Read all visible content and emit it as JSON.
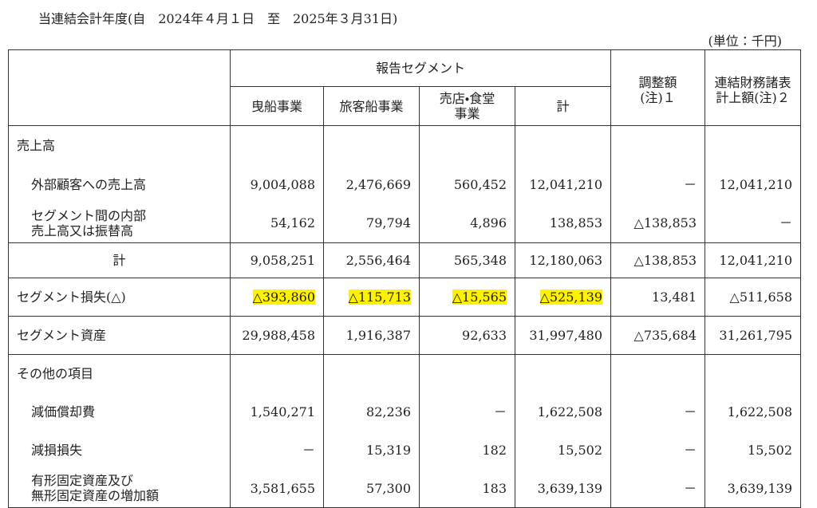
{
  "title": "当連結会計年度(自　2024年４月１日　至　2025年３月31日)",
  "unit": "(単位：千円)",
  "header": {
    "group": "報告セグメント",
    "columns": [
      "曳船事業",
      "旅客船事業",
      "売店・食堂\n事業",
      "計"
    ],
    "adjustment": "調整額\n(注)１",
    "consolidated": "連結財務諸表\n計上額(注)２"
  },
  "body": {
    "sections": [
      {
        "rows": [
          {
            "label": "売上高"
          },
          {
            "label": "外部顧客への売上高",
            "cells": [
              "9,004,088",
              "2,476,669",
              "560,452",
              "12,041,210",
              "－",
              "12,041,210"
            ]
          },
          {
            "label": "セグメント間の内部\n売上高又は振替高",
            "cells": [
              "54,162",
              "79,794",
              "4,896",
              "138,853",
              "△138,853",
              "－"
            ]
          }
        ]
      },
      {
        "rows": [
          {
            "label": "計",
            "cells": [
              "9,058,251",
              "2,556,464",
              "565,348",
              "12,180,063",
              "△138,853",
              "12,041,210"
            ]
          }
        ]
      },
      {
        "rows": [
          {
            "label": "セグメント損失(△)",
            "cells": [
              "△393,860",
              "△115,713",
              "△15,565",
              "△525,139",
              "13,481",
              "△511,658"
            ]
          }
        ]
      },
      {
        "rows": [
          {
            "label": "セグメント資産",
            "cells": [
              "29,988,458",
              "1,916,387",
              "92,633",
              "31,997,480",
              "△735,684",
              "31,261,795"
            ]
          }
        ]
      },
      {
        "rows": [
          {
            "label": "その他の項目"
          },
          {
            "label": "減価償却費",
            "cells": [
              "1,540,271",
              "82,236",
              "－",
              "1,622,508",
              "－",
              "1,622,508"
            ]
          },
          {
            "label": "減損損失",
            "cells": [
              "－",
              "15,319",
              "182",
              "15,502",
              "－",
              "15,502"
            ]
          },
          {
            "label": "有形固定資産及び\n無形固定資産の増加額",
            "cells": [
              "3,581,655",
              "57,300",
              "183",
              "3,639,139",
              "－",
              "3,639,139"
            ]
          }
        ]
      }
    ]
  }
}
